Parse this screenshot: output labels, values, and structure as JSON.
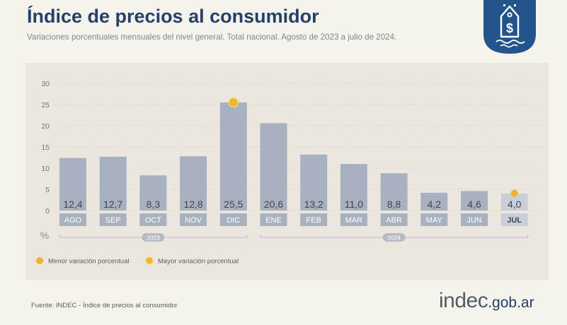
{
  "header": {
    "title": "Índice de precios al consumidor",
    "subtitle": "Variaciones porcentuales mensuales del nivel general. Total nacional. Agosto de 2023 a julio de 2024."
  },
  "icons": {
    "badge": "price-tag-dollar-icon"
  },
  "colors": {
    "bar": "#a7b1bf",
    "bar_highlight": "#c9cfd8",
    "marker": "#efb32e",
    "title": "#24416b",
    "badge": "#24548c",
    "panel": "#ebe7de"
  },
  "chart_data": {
    "type": "bar",
    "categories": [
      "AGO",
      "SEP",
      "OCT",
      "NOV",
      "DIC",
      "ENE",
      "FEB",
      "MAR",
      "ABR",
      "MAY",
      "JUN",
      "JUL"
    ],
    "values": [
      12.4,
      12.7,
      8.3,
      12.8,
      25.5,
      20.6,
      13.2,
      11.0,
      8.8,
      4.2,
      4.6,
      4.0
    ],
    "value_labels": [
      "12,4",
      "12,7",
      "8,3",
      "12,8",
      "25,5",
      "20,6",
      "13,2",
      "11,0",
      "8,8",
      "4,2",
      "4,6",
      "4,0"
    ],
    "ylim": [
      0,
      30
    ],
    "yticks": [
      0,
      5,
      10,
      15,
      20,
      25,
      30
    ],
    "ylabel": "%",
    "highlight_category": "JUL",
    "year_groups": [
      {
        "label": "2023",
        "start": "AGO",
        "end": "DIC"
      },
      {
        "label": "2024",
        "start": "ENE",
        "end": "JUL"
      }
    ],
    "markers": [
      {
        "category": "DIC",
        "type": "max"
      },
      {
        "category": "JUL",
        "type": "min"
      }
    ],
    "legend": [
      {
        "label": "Menor variación porcentual",
        "type": "min"
      },
      {
        "label": "Mayor variación porcentual",
        "type": "max"
      }
    ],
    "legend_position": "bottom-left",
    "grid": true
  },
  "footer": {
    "source": "Fuente: INDEC - Índice de precios al consumidor",
    "logo_main": "indec",
    "logo_suffix": ".gob.ar"
  }
}
